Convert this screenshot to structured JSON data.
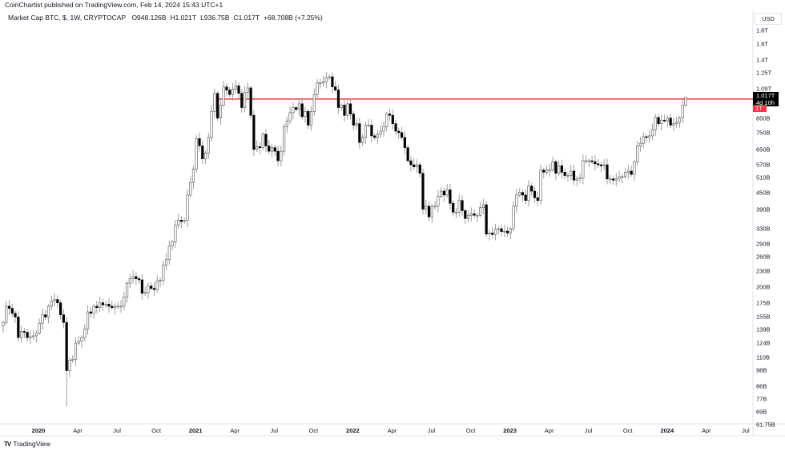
{
  "header": {
    "published": "CoinChartist published on TradingView.com, Feb 14, 2024 15:43 UTC+1",
    "symbol": "Market Cap BTC, $, 1W, CRYPTOCAP",
    "open": "O948.126B",
    "high": "H1.021T",
    "low": "L936.75B",
    "close": "C1.017T",
    "change": "+68.708B (+7.25%)"
  },
  "price_axis": {
    "currency": "USD",
    "ticks": [
      "1.8T",
      "1.6T",
      "1.4T",
      "1.25T",
      "1.09T",
      "850B",
      "750B",
      "650B",
      "570B",
      "510B",
      "450B",
      "390B",
      "330B",
      "290B",
      "260B",
      "230B",
      "200B",
      "175B",
      "155B",
      "139B",
      "124B",
      "110B",
      "98B",
      "86B",
      "77B",
      "69B",
      "61.75B"
    ],
    "current_price": "1.017T",
    "countdown": "4d 10h",
    "resistance_label": "1T"
  },
  "time_axis": {
    "labels": [
      "2020",
      "Apr",
      "Jul",
      "Oct",
      "2021",
      "Apr",
      "Jul",
      "Oct",
      "2022",
      "Apr",
      "Jul",
      "Oct",
      "2023",
      "Apr",
      "Jul",
      "Oct",
      "2024",
      "Apr",
      "Jul"
    ]
  },
  "branding": {
    "name": "TradingView"
  },
  "chart_data": {
    "type": "candlestick",
    "interval": "1W",
    "y_scale": "log",
    "units": "USD billions",
    "ylim": [
      61.75,
      1800
    ],
    "first_week": "2019-10-14",
    "last_week": "2024-02-12",
    "grid": false,
    "up_color": "#ffffff",
    "down_color": "#000000",
    "wick_color": "#9e9e9e",
    "horizontal_line": {
      "value": 1000,
      "color": "#f23645"
    },
    "last_candle": {
      "open": 948.126,
      "high": 1021,
      "low": 936.75,
      "close": 1017
    },
    "weekly_close": [
      148,
      170,
      167,
      160,
      155,
      130,
      137,
      136,
      130,
      131,
      132,
      135,
      147,
      158,
      155,
      170,
      178,
      180,
      175,
      158,
      148,
      98,
      107,
      108,
      124,
      126,
      130,
      140,
      162,
      160,
      170,
      168,
      175,
      172,
      173,
      170,
      168,
      170,
      170,
      170,
      184,
      207,
      215,
      219,
      215,
      213,
      190,
      191,
      202,
      198,
      196,
      211,
      212,
      242,
      253,
      285,
      295,
      340,
      355,
      351,
      354,
      440,
      490,
      550,
      713,
      670,
      600,
      630,
      720,
      900,
      1050,
      850,
      950,
      1110,
      1080,
      1040,
      1090,
      1120,
      1050,
      930,
      1060,
      1100,
      870,
      650,
      665,
      660,
      740,
      670,
      640,
      660,
      640,
      590,
      640,
      790,
      830,
      890,
      930,
      915,
      960,
      860,
      900,
      800,
      900,
      1040,
      1150,
      1150,
      1160,
      1200,
      1210,
      1110,
      1080,
      930,
      950,
      870,
      960,
      880,
      800,
      810,
      690,
      720,
      800,
      800,
      730,
      720,
      740,
      760,
      790,
      880,
      870,
      810,
      760,
      750,
      720,
      660,
      590,
      570,
      560,
      570,
      530,
      390,
      400,
      365,
      400,
      400,
      435,
      455,
      440,
      460,
      410,
      380,
      380,
      420,
      385,
      360,
      370,
      375,
      370,
      370,
      395,
      405,
      315,
      318,
      314,
      328,
      330,
      322,
      323,
      318,
      330,
      400,
      440,
      450,
      440,
      420,
      475,
      455,
      430,
      420,
      545,
      535,
      545,
      545,
      585,
      530,
      565,
      535,
      520,
      520,
      540,
      500,
      505,
      510,
      590,
      590,
      590,
      585,
      575,
      570,
      565,
      570,
      505,
      505,
      500,
      505,
      515,
      515,
      535,
      540,
      525,
      585,
      670,
      685,
      725,
      720,
      730,
      770,
      855,
      810,
      835,
      830,
      850,
      800,
      810,
      820,
      850,
      948.126,
      1017
    ]
  }
}
